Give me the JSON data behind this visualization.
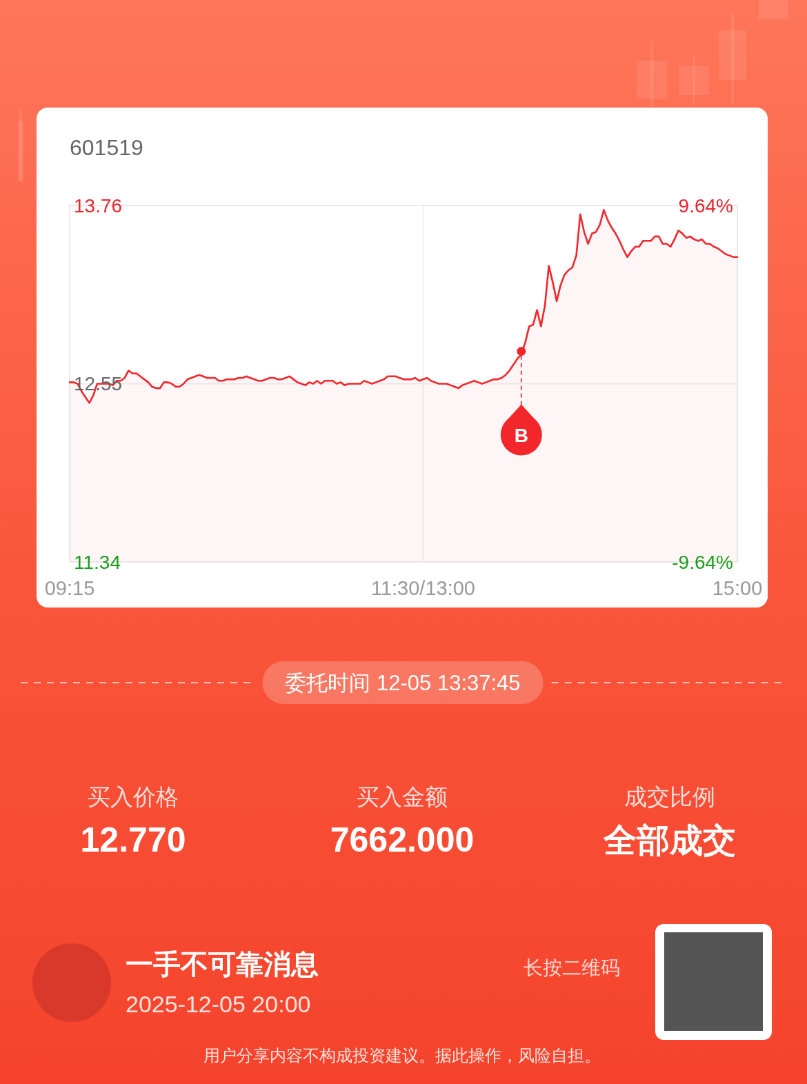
{
  "chart_data": {
    "type": "area",
    "subtitle": "601519",
    "categories": [
      "09:15",
      null,
      null,
      null,
      null,
      null,
      null,
      null,
      null,
      null,
      null,
      null,
      null,
      null,
      null,
      null,
      null,
      null,
      null,
      null,
      null,
      null,
      null,
      null,
      null,
      null,
      null,
      null,
      null,
      null,
      null,
      null,
      null,
      null,
      null,
      null,
      null,
      null,
      null,
      null,
      null,
      null,
      null,
      null,
      null,
      null,
      null,
      null,
      null,
      null,
      null,
      null,
      null,
      null,
      null,
      null,
      null,
      null,
      null,
      null,
      null,
      null,
      null,
      null,
      null,
      null,
      null,
      null,
      null,
      null,
      null,
      null,
      null,
      null,
      null,
      null,
      null,
      null,
      null,
      null,
      null,
      null,
      null,
      null,
      null,
      null,
      null,
      null,
      null,
      null,
      "11:30/13:00",
      null,
      null,
      null,
      null,
      null,
      null,
      null,
      null,
      null,
      null,
      null,
      null,
      null,
      null,
      null,
      null,
      null,
      null,
      null,
      null,
      null,
      null,
      null,
      null,
      null,
      null,
      null,
      null,
      null,
      null,
      null,
      null,
      null,
      null,
      null,
      null,
      null,
      null,
      null,
      null,
      null,
      null,
      null,
      null,
      null,
      null,
      null,
      null,
      null,
      null,
      null,
      null,
      null,
      null,
      null,
      null,
      null,
      null,
      null,
      null,
      null,
      null,
      null,
      null,
      null,
      null,
      null,
      null,
      null,
      null,
      null,
      null,
      null,
      null,
      null,
      null,
      null,
      null,
      null,
      "15:00"
    ],
    "series": [
      {
        "color": "#f2262b",
        "values": [
          12.56,
          12.56,
          12.55,
          12.5,
          12.46,
          12.42,
          12.47,
          12.55,
          12.55,
          12.55,
          12.55,
          12.54,
          12.57,
          12.57,
          12.59,
          12.64,
          12.62,
          12.62,
          12.6,
          12.58,
          12.56,
          12.53,
          12.52,
          12.52,
          12.56,
          12.56,
          12.55,
          12.53,
          12.53,
          12.55,
          12.58,
          12.59,
          12.6,
          12.61,
          12.6,
          12.59,
          12.59,
          12.59,
          12.57,
          12.57,
          12.58,
          12.58,
          12.58,
          12.59,
          12.59,
          12.6,
          12.59,
          12.58,
          12.57,
          12.57,
          12.58,
          12.59,
          12.59,
          12.58,
          12.58,
          12.59,
          12.6,
          12.58,
          12.56,
          12.55,
          12.54,
          12.56,
          12.55,
          12.57,
          12.55,
          12.57,
          12.57,
          12.57,
          12.55,
          12.56,
          12.54,
          12.55,
          12.55,
          12.55,
          12.55,
          12.57,
          12.56,
          12.55,
          12.56,
          12.57,
          12.58,
          12.6,
          12.6,
          12.6,
          12.59,
          12.58,
          12.58,
          12.58,
          12.59,
          12.57,
          12.58,
          12.59,
          12.57,
          12.56,
          12.55,
          12.55,
          12.55,
          12.54,
          12.53,
          12.52,
          12.54,
          12.55,
          12.56,
          12.57,
          12.56,
          12.55,
          12.56,
          12.57,
          12.58,
          12.58,
          12.59,
          12.61,
          12.64,
          12.68,
          12.72,
          12.75,
          12.83,
          12.94,
          12.95,
          13.05,
          12.94,
          13.08,
          13.35,
          13.24,
          13.11,
          13.22,
          13.29,
          13.32,
          13.34,
          13.42,
          13.7,
          13.58,
          13.5,
          13.57,
          13.58,
          13.63,
          13.73,
          13.66,
          13.61,
          13.57,
          13.52,
          13.46,
          13.41,
          13.45,
          13.48,
          13.48,
          13.52,
          13.52,
          13.52,
          13.55,
          13.55,
          13.5,
          13.5,
          13.48,
          13.53,
          13.59,
          13.57,
          13.54,
          13.55,
          13.53,
          13.52,
          13.53,
          13.5,
          13.5,
          13.48,
          13.47,
          13.45,
          13.43,
          13.42,
          13.41,
          13.41
        ]
      },
      {
        "type": "scatter",
        "marker": "circle",
        "color": "#f2262b",
        "values": [
          null,
          null,
          null,
          null,
          null,
          null,
          null,
          null,
          null,
          null,
          null,
          null,
          null,
          null,
          null,
          null,
          null,
          null,
          null,
          null,
          null,
          null,
          null,
          null,
          null,
          null,
          null,
          null,
          null,
          null,
          null,
          null,
          null,
          null,
          null,
          null,
          null,
          null,
          null,
          null,
          null,
          null,
          null,
          null,
          null,
          null,
          null,
          null,
          null,
          null,
          null,
          null,
          null,
          null,
          null,
          null,
          null,
          null,
          null,
          null,
          null,
          null,
          null,
          null,
          null,
          null,
          null,
          null,
          null,
          null,
          null,
          null,
          null,
          null,
          null,
          null,
          null,
          null,
          null,
          null,
          null,
          null,
          null,
          null,
          null,
          null,
          null,
          null,
          null,
          null,
          null,
          null,
          null,
          null,
          null,
          null,
          null,
          null,
          null,
          null,
          null,
          null,
          null,
          null,
          null,
          null,
          null,
          null,
          null,
          null,
          null,
          null,
          null,
          null,
          null,
          12.77,
          null,
          null,
          null,
          null,
          null,
          null,
          null,
          null,
          null,
          null,
          null,
          null,
          null,
          null,
          null,
          null,
          null,
          null,
          null,
          null,
          null,
          null,
          null,
          null,
          null,
          null,
          null,
          null,
          null,
          null,
          null,
          null,
          null,
          null,
          null,
          null,
          null,
          null,
          null,
          null,
          null,
          null,
          null,
          null,
          null,
          null,
          null,
          null,
          null,
          null,
          null,
          null,
          null,
          null,
          null
        ],
        "value_labels": [
          null,
          null,
          null,
          null,
          null,
          null,
          null,
          null,
          null,
          null,
          null,
          null,
          null,
          null,
          null,
          null,
          null,
          null,
          null,
          null,
          null,
          null,
          null,
          null,
          null,
          null,
          null,
          null,
          null,
          null,
          null,
          null,
          null,
          null,
          null,
          null,
          null,
          null,
          null,
          null,
          null,
          null,
          null,
          null,
          null,
          null,
          null,
          null,
          null,
          null,
          null,
          null,
          null,
          null,
          null,
          null,
          null,
          null,
          null,
          null,
          null,
          null,
          null,
          null,
          null,
          null,
          null,
          null,
          null,
          null,
          null,
          null,
          null,
          null,
          null,
          null,
          null,
          null,
          null,
          null,
          null,
          null,
          null,
          null,
          null,
          null,
          null,
          null,
          null,
          null,
          null,
          null,
          null,
          null,
          null,
          null,
          null,
          null,
          null,
          null,
          null,
          null,
          null,
          null,
          null,
          null,
          null,
          null,
          null,
          null,
          null,
          null,
          null,
          null,
          null,
          "B",
          null,
          null,
          null,
          null,
          null,
          null,
          null,
          null,
          null,
          null,
          null,
          null,
          null,
          null,
          null,
          null,
          null,
          null,
          null,
          null,
          null,
          null,
          null,
          null,
          null,
          null,
          null,
          null,
          null,
          null,
          null,
          null,
          null,
          null,
          null,
          null,
          null,
          null,
          null,
          null,
          null,
          null,
          null,
          null,
          null,
          null,
          null,
          null,
          null,
          null,
          null,
          null,
          null,
          null,
          null
        ]
      }
    ],
    "ylim": [
      11.34,
      13.76
    ],
    "yticks": [
      13.76,
      12.55,
      11.34
    ],
    "y2lim": [
      -9.64,
      9.64
    ],
    "y2ticks": [
      {
        "value": 9.64,
        "label": "9.64%"
      },
      {
        "value": -9.64,
        "label": "-9.64%"
      }
    ],
    "grid": true,
    "annotations": [
      "委托时间 12-05 13:37:45",
      "买入价格",
      "12.770",
      "买入金额",
      "7662.000",
      "成交比例",
      "全部成交",
      "一手不可靠消息",
      "2025-12-05 20:00",
      "长按二维码",
      "用户分享内容不构成投资建议。据此操作，风险自担。"
    ]
  }
}
